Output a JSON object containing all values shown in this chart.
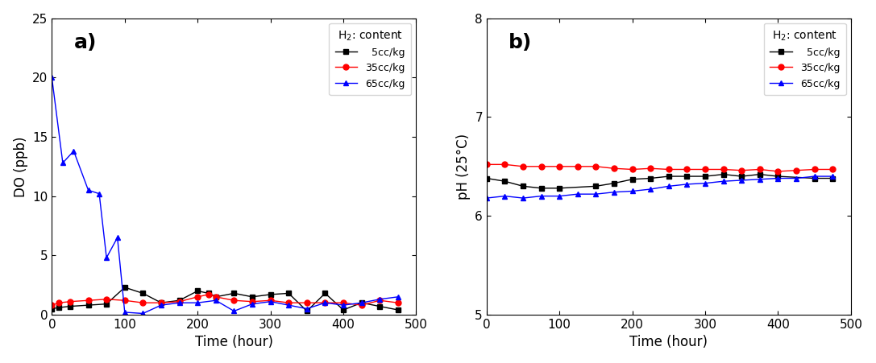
{
  "panel_a": {
    "label": "a)",
    "xlabel": "Time (hour)",
    "ylabel": "DO (ppb)",
    "xlim": [
      0,
      500
    ],
    "ylim": [
      0,
      25
    ],
    "yticks": [
      0,
      5,
      10,
      15,
      20,
      25
    ],
    "xticks": [
      0,
      100,
      200,
      300,
      400,
      500
    ],
    "series": {
      "5cc": {
        "color": "#000000",
        "marker": "s",
        "label": "  5cc/kg",
        "x": [
          0,
          10,
          25,
          50,
          75,
          100,
          125,
          150,
          175,
          200,
          215,
          225,
          250,
          275,
          300,
          325,
          350,
          375,
          400,
          425,
          450,
          475
        ],
        "y": [
          0.5,
          0.6,
          0.7,
          0.8,
          0.9,
          2.3,
          1.8,
          1.0,
          1.2,
          2.0,
          1.8,
          1.5,
          1.8,
          1.5,
          1.7,
          1.8,
          0.3,
          1.8,
          0.4,
          1.0,
          0.7,
          0.4
        ]
      },
      "35cc": {
        "color": "#ff0000",
        "marker": "o",
        "label": "35cc/kg",
        "x": [
          0,
          10,
          25,
          50,
          75,
          100,
          125,
          150,
          175,
          200,
          215,
          225,
          250,
          275,
          300,
          325,
          350,
          375,
          400,
          425,
          450,
          475
        ],
        "y": [
          0.8,
          1.0,
          1.1,
          1.2,
          1.3,
          1.2,
          1.0,
          1.0,
          1.1,
          1.5,
          1.7,
          1.5,
          1.2,
          1.1,
          1.2,
          1.0,
          1.0,
          1.0,
          1.0,
          0.8,
          1.2,
          1.0
        ]
      },
      "65cc": {
        "color": "#0000ff",
        "marker": "^",
        "label": "65cc/kg",
        "x": [
          0,
          15,
          30,
          50,
          65,
          75,
          90,
          100,
          125,
          150,
          175,
          200,
          225,
          250,
          275,
          300,
          325,
          350,
          375,
          400,
          425,
          450,
          475
        ],
        "y": [
          20.0,
          12.8,
          13.8,
          10.5,
          10.2,
          4.8,
          6.5,
          0.2,
          0.1,
          0.8,
          1.0,
          1.0,
          1.2,
          0.3,
          0.9,
          1.1,
          0.8,
          0.5,
          1.0,
          0.8,
          1.0,
          1.3,
          1.5
        ]
      }
    },
    "legend_title": "H$_2$: content"
  },
  "panel_b": {
    "label": "b)",
    "xlabel": "Time (hour)",
    "ylabel": "pH (25°C)",
    "xlim": [
      0,
      500
    ],
    "ylim": [
      5,
      8
    ],
    "yticks": [
      5,
      6,
      7,
      8
    ],
    "xticks": [
      0,
      100,
      200,
      300,
      400,
      500
    ],
    "series": {
      "5cc": {
        "color": "#000000",
        "marker": "s",
        "label": "  5cc/kg",
        "x": [
          0,
          25,
          50,
          75,
          100,
          150,
          175,
          200,
          225,
          250,
          275,
          300,
          325,
          350,
          375,
          400,
          450,
          475
        ],
        "y": [
          6.38,
          6.35,
          6.3,
          6.28,
          6.28,
          6.3,
          6.33,
          6.37,
          6.38,
          6.4,
          6.4,
          6.4,
          6.42,
          6.4,
          6.42,
          6.4,
          6.38,
          6.38
        ]
      },
      "35cc": {
        "color": "#ff0000",
        "marker": "o",
        "label": "35cc/kg",
        "x": [
          0,
          25,
          50,
          75,
          100,
          125,
          150,
          175,
          200,
          225,
          250,
          275,
          300,
          325,
          350,
          375,
          400,
          425,
          450,
          475
        ],
        "y": [
          6.52,
          6.52,
          6.5,
          6.5,
          6.5,
          6.5,
          6.5,
          6.48,
          6.47,
          6.48,
          6.47,
          6.47,
          6.47,
          6.47,
          6.46,
          6.47,
          6.45,
          6.46,
          6.47,
          6.47
        ]
      },
      "65cc": {
        "color": "#0000ff",
        "marker": "^",
        "label": "65cc/kg",
        "x": [
          0,
          25,
          50,
          75,
          100,
          125,
          150,
          175,
          200,
          225,
          250,
          275,
          300,
          325,
          350,
          375,
          400,
          425,
          450,
          475
        ],
        "y": [
          6.18,
          6.2,
          6.18,
          6.2,
          6.2,
          6.22,
          6.22,
          6.24,
          6.25,
          6.27,
          6.3,
          6.32,
          6.33,
          6.35,
          6.36,
          6.37,
          6.38,
          6.38,
          6.4,
          6.4
        ]
      }
    },
    "legend_title": "H$_2$: content"
  }
}
